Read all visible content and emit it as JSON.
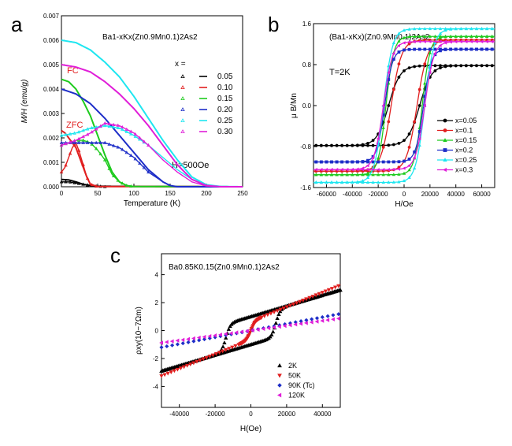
{
  "chart_data": [
    {
      "panel": "a",
      "type": "line",
      "title": "Ba1-xKx(Zn0.9Mn0.1)2As2",
      "xlabel": "Temperature (K)",
      "ylabel": "M/H (emu/g)",
      "xlim": [
        0,
        250
      ],
      "ylim": [
        0,
        0.007
      ],
      "xticks": [
        "0",
        "50",
        "100",
        "150",
        "200",
        "250"
      ],
      "yticks": [
        "0.000",
        "0.001",
        "0.002",
        "0.003",
        "0.004",
        "0.005",
        "0.006",
        "0.007"
      ],
      "annotations": {
        "fc": "FC",
        "zfc": "ZFC",
        "field": "H=500Oe"
      },
      "legend": {
        "header": "x =",
        "placement": "right"
      },
      "series": [
        {
          "name": "0.05",
          "color": "#000000",
          "fc": [
            [
              0,
              0.0003
            ],
            [
              10,
              0.00028
            ],
            [
              20,
              0.0002
            ],
            [
              30,
              0.0001
            ],
            [
              40,
              5e-05
            ],
            [
              50,
              2e-05
            ],
            [
              250,
              0
            ]
          ],
          "zfc": [
            [
              0,
              0.0002
            ],
            [
              10,
              0.0002
            ],
            [
              20,
              0.00015
            ],
            [
              30,
              0.0001
            ],
            [
              40,
              5e-05
            ],
            [
              60,
              0
            ]
          ]
        },
        {
          "name": "0.10",
          "color": "#e11e1e",
          "fc": [
            [
              0,
              0.0023
            ],
            [
              5,
              0.0022
            ],
            [
              10,
              0.002
            ],
            [
              15,
              0.0018
            ],
            [
              20,
              0.0016
            ],
            [
              25,
              0.0012
            ],
            [
              30,
              0.0008
            ],
            [
              35,
              0.0004
            ],
            [
              40,
              0.0001
            ],
            [
              50,
              1e-05
            ],
            [
              250,
              0
            ]
          ],
          "zfc": [
            [
              0,
              0.0006
            ],
            [
              5,
              0.0008
            ],
            [
              10,
              0.0012
            ],
            [
              15,
              0.0016
            ],
            [
              20,
              0.0018
            ],
            [
              25,
              0.0014
            ],
            [
              30,
              0.0009
            ],
            [
              35,
              0.0004
            ],
            [
              40,
              0.0001
            ],
            [
              50,
              0
            ]
          ]
        },
        {
          "name": "0.15",
          "color": "#1ecb1e",
          "fc": [
            [
              0,
              0.0044
            ],
            [
              10,
              0.0043
            ],
            [
              20,
              0.004
            ],
            [
              30,
              0.0035
            ],
            [
              40,
              0.0029
            ],
            [
              50,
              0.0021
            ],
            [
              60,
              0.0013
            ],
            [
              70,
              0.0006
            ],
            [
              80,
              0.0002
            ],
            [
              90,
              5e-05
            ],
            [
              100,
              1e-05
            ],
            [
              250,
              0
            ]
          ],
          "zfc": [
            [
              0,
              0.0017
            ],
            [
              10,
              0.0018
            ],
            [
              20,
              0.0019
            ],
            [
              30,
              0.0019
            ],
            [
              40,
              0.0018
            ],
            [
              50,
              0.0015
            ],
            [
              60,
              0.0011
            ],
            [
              70,
              0.0005
            ],
            [
              80,
              0.0002
            ],
            [
              90,
              5e-05
            ],
            [
              100,
              0
            ]
          ]
        },
        {
          "name": "0.20",
          "color": "#1e2ec8",
          "fc": [
            [
              0,
              0.004
            ],
            [
              20,
              0.0038
            ],
            [
              40,
              0.0034
            ],
            [
              60,
              0.0028
            ],
            [
              80,
              0.0021
            ],
            [
              100,
              0.0014
            ],
            [
              120,
              0.0007
            ],
            [
              140,
              0.0002
            ],
            [
              150,
              5e-05
            ],
            [
              160,
              0
            ],
            [
              250,
              0
            ]
          ],
          "zfc": [
            [
              0,
              0.0018
            ],
            [
              20,
              0.0018
            ],
            [
              40,
              0.0018
            ],
            [
              60,
              0.0018
            ],
            [
              80,
              0.0016
            ],
            [
              100,
              0.0012
            ],
            [
              120,
              0.0006
            ],
            [
              140,
              0.0002
            ],
            [
              150,
              5e-05
            ],
            [
              160,
              0
            ]
          ]
        },
        {
          "name": "0.25",
          "color": "#1ee6f0",
          "fc": [
            [
              0,
              0.006
            ],
            [
              20,
              0.0059
            ],
            [
              40,
              0.0056
            ],
            [
              60,
              0.0051
            ],
            [
              80,
              0.0045
            ],
            [
              100,
              0.0037
            ],
            [
              120,
              0.0028
            ],
            [
              140,
              0.0019
            ],
            [
              160,
              0.0011
            ],
            [
              180,
              0.0004
            ],
            [
              200,
              8e-05
            ],
            [
              220,
              1e-05
            ],
            [
              250,
              0
            ]
          ],
          "zfc": [
            [
              0,
              0.0021
            ],
            [
              20,
              0.0022
            ],
            [
              40,
              0.0024
            ],
            [
              60,
              0.0025
            ],
            [
              80,
              0.0024
            ],
            [
              100,
              0.0021
            ],
            [
              120,
              0.0017
            ],
            [
              140,
              0.0012
            ],
            [
              160,
              0.0007
            ],
            [
              180,
              0.0003
            ],
            [
              200,
              5e-05
            ],
            [
              220,
              0
            ]
          ]
        },
        {
          "name": "0.30",
          "color": "#e01ed8",
          "fc": [
            [
              0,
              0.005
            ],
            [
              20,
              0.0049
            ],
            [
              40,
              0.0047
            ],
            [
              60,
              0.0043
            ],
            [
              80,
              0.0038
            ],
            [
              100,
              0.0032
            ],
            [
              120,
              0.0025
            ],
            [
              140,
              0.0017
            ],
            [
              160,
              0.0009
            ],
            [
              180,
              0.0003
            ],
            [
              200,
              5e-05
            ],
            [
              220,
              0
            ],
            [
              250,
              0
            ]
          ],
          "zfc": [
            [
              0,
              0.0017
            ],
            [
              20,
              0.0019
            ],
            [
              40,
              0.0022
            ],
            [
              60,
              0.0026
            ],
            [
              80,
              0.0025
            ],
            [
              100,
              0.0022
            ],
            [
              120,
              0.0017
            ],
            [
              140,
              0.0011
            ],
            [
              160,
              0.0006
            ],
            [
              180,
              0.0002
            ],
            [
              200,
              3e-05
            ],
            [
              220,
              0
            ]
          ]
        }
      ]
    },
    {
      "panel": "b",
      "type": "line",
      "title": "(Ba1-xKx)(Zn0.9Mn0.1)2As2",
      "xlabel": "H/Oe",
      "ylabel": "μ B/Mn",
      "xlim": [
        -70000,
        70000
      ],
      "ylim": [
        -1.6,
        1.6
      ],
      "xticks": [
        "-60000",
        "-40000",
        "-20000",
        "0",
        "20000",
        "40000",
        "60000"
      ],
      "yticks": [
        "-1.6",
        "-0.8",
        "0.0",
        "0.8",
        "1.6"
      ],
      "annotations": {
        "temperature": "T=2K"
      },
      "legend": {
        "placement": "bottom-right"
      },
      "series": [
        {
          "name": "x=0.05",
          "color": "#000000",
          "ms": 0.78,
          "hc": 12000,
          "w": 9000
        },
        {
          "name": "x=0.1",
          "color": "#e11e1e",
          "ms": 1.28,
          "hc": 10000,
          "w": 8000
        },
        {
          "name": "x=0.15",
          "color": "#1ecb1e",
          "ms": 1.35,
          "hc": 14000,
          "w": 6000
        },
        {
          "name": "x=0.2",
          "color": "#1e2ec8",
          "ms": 1.1,
          "hc": 15000,
          "w": 6000
        },
        {
          "name": "x=0.25",
          "color": "#1ee6f0",
          "ms": 1.5,
          "hc": 16000,
          "w": 7000
        },
        {
          "name": "x=0.3",
          "color": "#e01ed8",
          "ms": 1.25,
          "hc": 16000,
          "w": 7000
        }
      ]
    },
    {
      "panel": "c",
      "type": "scatter",
      "title": "Ba0.85K0.15(Zn0.9Mn0.1)2As2",
      "xlabel": "H(Oe)",
      "ylabel": "ρxy(10−7Ωm)",
      "xlim": [
        -50000,
        50000
      ],
      "ylim": [
        -5.5,
        5.5
      ],
      "xticks": [
        "-40000",
        "-20000",
        "0",
        "20000",
        "40000"
      ],
      "yticks": [
        "-4",
        "-2",
        "0",
        "2",
        "4"
      ],
      "legend": {
        "placement": "bottom-right"
      },
      "series": [
        {
          "name": "2K",
          "color": "#000000",
          "marker": "triangle-up",
          "slope": 3.8e-05,
          "jump": 1.0,
          "hc": 14000
        },
        {
          "name": "50K",
          "color": "#e11e1e",
          "marker": "triangle-down",
          "slope": 5.2e-05,
          "jump": 0.65,
          "hc": 0
        },
        {
          "name": "90K (Tc)",
          "color": "#1e2ec8",
          "marker": "diamond",
          "slope": 2.4e-05,
          "jump": 0,
          "hc": 0
        },
        {
          "name": "120K",
          "color": "#e01ed8",
          "marker": "triangle-left",
          "slope": 1.75e-05,
          "jump": 0,
          "hc": 0
        }
      ]
    }
  ],
  "labels": {
    "a": "a",
    "b": "b",
    "c": "c"
  }
}
